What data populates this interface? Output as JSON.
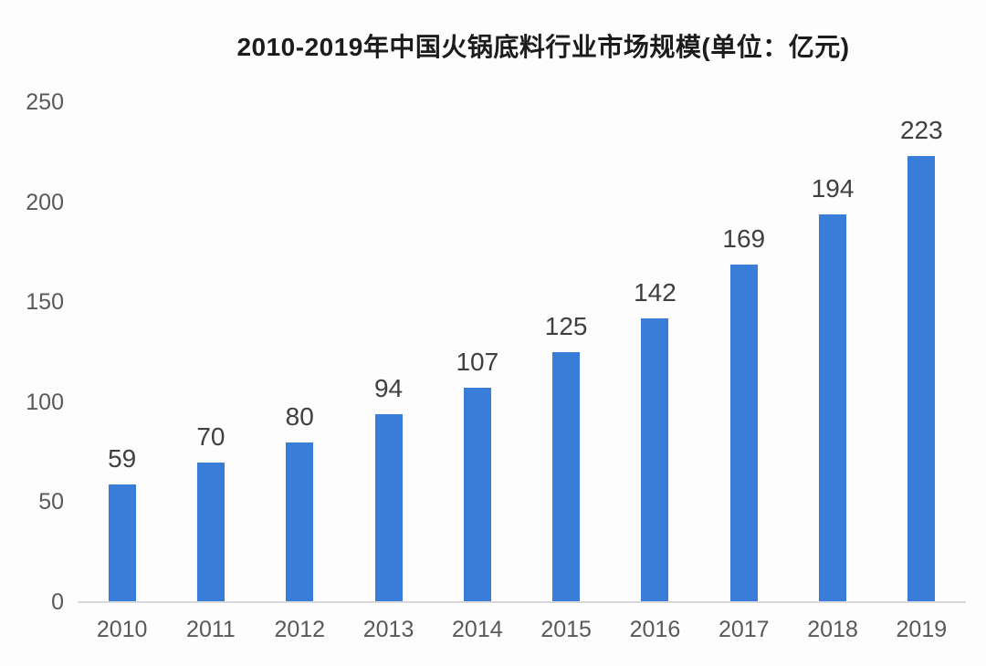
{
  "title": "2010-2019年中国火锅底料行业市场规模(单位：亿元)",
  "colors": {
    "bar": "#3a7dd8",
    "value_label": "#3f3f3f",
    "axis_text": "#595959",
    "baseline": "#d8d8d8",
    "title": "#1c1c1c",
    "background": "#fdfdfd"
  },
  "chart_data": {
    "type": "bar",
    "title": "2010-2019年中国火锅底料行业市场规模(单位：亿元)",
    "categories": [
      "2010",
      "2011",
      "2012",
      "2013",
      "2014",
      "2015",
      "2016",
      "2017",
      "2018",
      "2019"
    ],
    "values": [
      59,
      70,
      80,
      94,
      107,
      125,
      142,
      169,
      194,
      223
    ],
    "unit": "亿元",
    "xlabel": "",
    "ylabel": "",
    "ylim": [
      0,
      250
    ],
    "yticks": [
      0,
      50,
      100,
      150,
      200,
      250
    ],
    "grid": false,
    "data_labels": true,
    "legend": "none"
  }
}
